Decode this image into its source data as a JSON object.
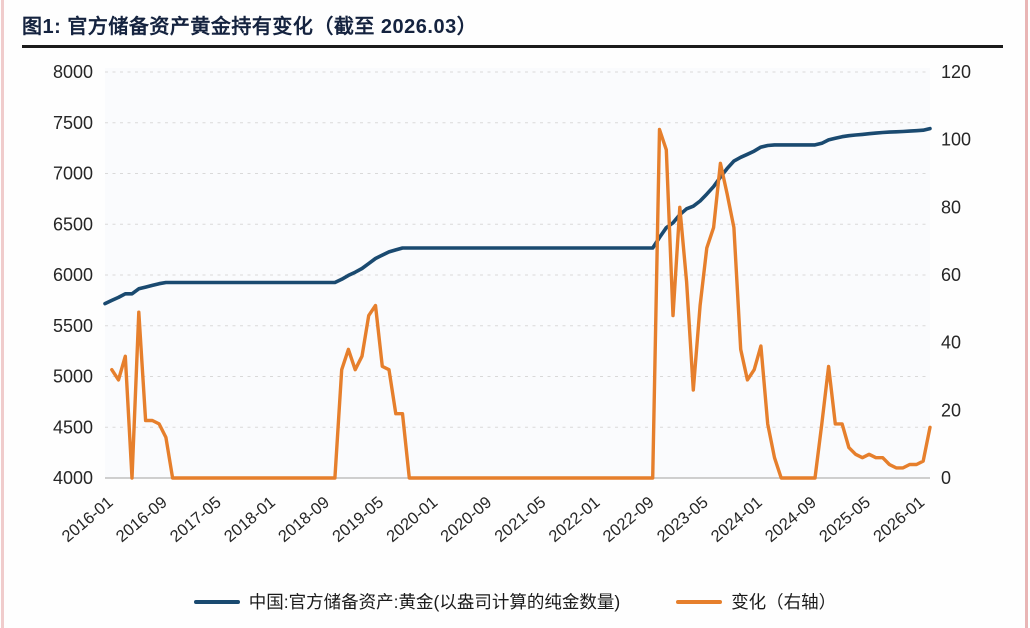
{
  "figure": {
    "title": "图1: 官方储备资产黄金持有变化（截至 2026.03）"
  },
  "colors": {
    "gold_line": "#1a4a70",
    "change_line": "#e67f2c",
    "grid": "#d9d9d9",
    "axis": "#bfbfbf",
    "title_text": "#15233f",
    "tick_text": "#262626",
    "legend_text": "#1a1a1a",
    "divider": "#1b1b1b",
    "page_border_left": "#f0cccc",
    "page_border_right": "#e9b5b5",
    "plot_bg": "#fafbfd"
  },
  "chart_data": {
    "type": "line",
    "title": "图1: 官方储备资产黄金持有变化（截至 2026.03）",
    "grid": "horizontal-dashed",
    "legend_position": "bottom",
    "ylim_left": [
      4000,
      8000
    ],
    "ylim_right": [
      0,
      120
    ],
    "left_ticks": [
      8000,
      7500,
      7000,
      6500,
      6000,
      5500,
      5000,
      4500,
      4000
    ],
    "right_ticks": [
      120,
      100,
      80,
      60,
      40,
      20,
      0
    ],
    "x_tick_labels": [
      "2016-01",
      "2016-09",
      "2017-05",
      "2018-01",
      "2018-09",
      "2019-05",
      "2020-01",
      "2020-09",
      "2021-05",
      "2022-01",
      "2022-09",
      "2023-05",
      "2024-01",
      "2024-09",
      "2025-05",
      "2026-01"
    ],
    "months": [
      "2016-01",
      "2016-02",
      "2016-03",
      "2016-04",
      "2016-05",
      "2016-06",
      "2016-07",
      "2016-08",
      "2016-09",
      "2016-10",
      "2016-11",
      "2016-12",
      "2017-01",
      "2017-02",
      "2017-03",
      "2017-04",
      "2017-05",
      "2017-06",
      "2017-07",
      "2017-08",
      "2017-09",
      "2017-10",
      "2017-11",
      "2017-12",
      "2018-01",
      "2018-02",
      "2018-03",
      "2018-04",
      "2018-05",
      "2018-06",
      "2018-07",
      "2018-08",
      "2018-09",
      "2018-10",
      "2018-11",
      "2018-12",
      "2019-01",
      "2019-02",
      "2019-03",
      "2019-04",
      "2019-05",
      "2019-06",
      "2019-07",
      "2019-08",
      "2019-09",
      "2019-10",
      "2019-11",
      "2019-12",
      "2020-01",
      "2020-02",
      "2020-03",
      "2020-04",
      "2020-05",
      "2020-06",
      "2020-07",
      "2020-08",
      "2020-09",
      "2020-10",
      "2020-11",
      "2020-12",
      "2021-01",
      "2021-02",
      "2021-03",
      "2021-04",
      "2021-05",
      "2021-06",
      "2021-07",
      "2021-08",
      "2021-09",
      "2021-10",
      "2021-11",
      "2021-12",
      "2022-01",
      "2022-02",
      "2022-03",
      "2022-04",
      "2022-05",
      "2022-06",
      "2022-07",
      "2022-08",
      "2022-09",
      "2022-10",
      "2022-11",
      "2022-12",
      "2023-01",
      "2023-02",
      "2023-03",
      "2023-04",
      "2023-05",
      "2023-06",
      "2023-07",
      "2023-08",
      "2023-09",
      "2023-10",
      "2023-11",
      "2023-12",
      "2024-01",
      "2024-02",
      "2024-03",
      "2024-04",
      "2024-05",
      "2024-06",
      "2024-07",
      "2024-08",
      "2024-09",
      "2024-10",
      "2024-11",
      "2024-12",
      "2025-01",
      "2025-02",
      "2025-03",
      "2025-04",
      "2025-05",
      "2025-06",
      "2025-07",
      "2025-08",
      "2025-09",
      "2025-10",
      "2025-11",
      "2025-12",
      "2026-01",
      "2026-02",
      "2026-03"
    ],
    "series": [
      {
        "id": "gold-holdings",
        "name": "中国:官方储备资产:黄金(以盎司计算的纯金数量)",
        "axis": "left",
        "color": "#1a4a70",
        "width": 3.6,
        "values": [
          5718,
          5750,
          5779,
          5815,
          5815,
          5864,
          5881,
          5898,
          5914,
          5926,
          5926,
          5926,
          5926,
          5926,
          5926,
          5926,
          5926,
          5926,
          5926,
          5926,
          5926,
          5926,
          5926,
          5926,
          5926,
          5926,
          5926,
          5926,
          5926,
          5926,
          5926,
          5926,
          5926,
          5926,
          5926,
          5958,
          5996,
          6028,
          6064,
          6112,
          6163,
          6196,
          6228,
          6247,
          6266,
          6266,
          6266,
          6266,
          6266,
          6266,
          6266,
          6266,
          6266,
          6266,
          6266,
          6266,
          6266,
          6266,
          6266,
          6266,
          6266,
          6266,
          6266,
          6266,
          6266,
          6266,
          6266,
          6266,
          6266,
          6266,
          6266,
          6266,
          6266,
          6266,
          6266,
          6266,
          6266,
          6266,
          6266,
          6266,
          6266,
          6266,
          6369,
          6466,
          6514,
          6594,
          6652,
          6678,
          6729,
          6797,
          6871,
          6964,
          7048,
          7122,
          7160,
          7189,
          7221,
          7260,
          7276,
          7282,
          7282,
          7282,
          7282,
          7282,
          7282,
          7282,
          7298,
          7331,
          7347,
          7363,
          7372,
          7379,
          7385,
          7392,
          7398,
          7404,
          7408,
          7411,
          7414,
          7418,
          7422,
          7427,
          7442
        ]
      },
      {
        "id": "monthly-change",
        "name": "变化（右轴）",
        "axis": "right",
        "color": "#e67f2c",
        "width": 3.4,
        "values": [
          null,
          32,
          29,
          36,
          0,
          49,
          17,
          17,
          16,
          12,
          0,
          0,
          0,
          0,
          0,
          0,
          0,
          0,
          0,
          0,
          0,
          0,
          0,
          0,
          0,
          0,
          0,
          0,
          0,
          0,
          0,
          0,
          0,
          0,
          0,
          32,
          38,
          32,
          36,
          48,
          51,
          33,
          32,
          19,
          19,
          0,
          0,
          0,
          0,
          0,
          0,
          0,
          0,
          0,
          0,
          0,
          0,
          0,
          0,
          0,
          0,
          0,
          0,
          0,
          0,
          0,
          0,
          0,
          0,
          0,
          0,
          0,
          0,
          0,
          0,
          0,
          0,
          0,
          0,
          0,
          0,
          0,
          103,
          97,
          48,
          80,
          58,
          26,
          51,
          68,
          74,
          93,
          84,
          74,
          38,
          29,
          32,
          39,
          16,
          6,
          0,
          0,
          0,
          0,
          0,
          0,
          16,
          33,
          16,
          16,
          9,
          7,
          6,
          7,
          6,
          6,
          4,
          3,
          3,
          4,
          4,
          5,
          15
        ]
      }
    ]
  },
  "legend": {
    "gold_label": "中国:官方储备资产:黄金(以盎司计算的纯金数量)",
    "change_label": "变化（右轴）"
  }
}
